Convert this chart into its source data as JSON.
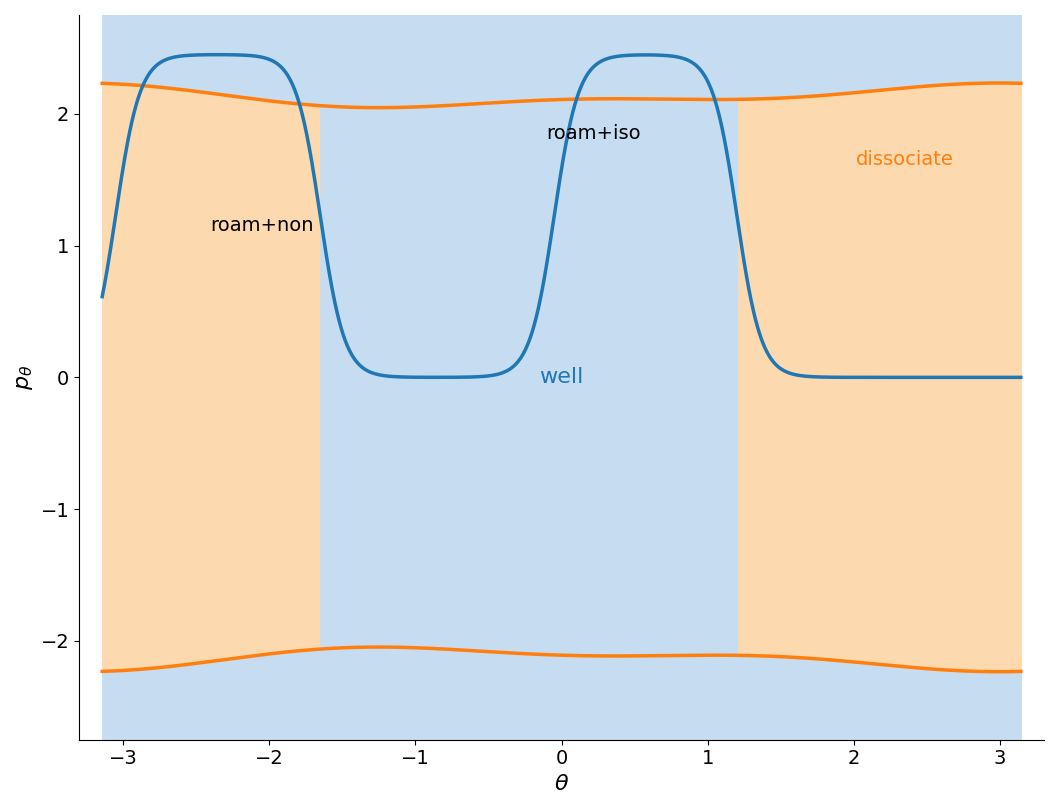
{
  "xlim": [
    -3.3,
    3.3
  ],
  "ylim": [
    -2.75,
    2.75
  ],
  "xlabel": "$\\theta$",
  "ylabel": "$p_{\\theta}$",
  "xlabel_fontsize": 16,
  "ylabel_fontsize": 16,
  "tick_fontsize": 14,
  "xticks": [
    -3,
    -2,
    -1,
    0,
    1,
    2,
    3
  ],
  "yticks": [
    -2,
    -1,
    0,
    1,
    2
  ],
  "blue_color": "#1f77b4",
  "orange_color": "#ff7f0e",
  "blue_fill": "#c6dcf0",
  "orange_fill": "#fdd9b0",
  "label_roam_non": "roam+non",
  "label_roam_iso": "roam+iso",
  "label_well": "well",
  "label_dissociate": "dissociate",
  "label_fontsize": 14,
  "label_well_fontsize": 16,
  "roam_non_x": -2.05,
  "roam_non_y": 1.15,
  "roam_iso_x": 0.22,
  "roam_iso_y": 1.85,
  "well_x": 0.0,
  "well_y": 0.0,
  "dissociate_x": 2.35,
  "dissociate_y": 1.65,
  "blue_amplitude": 2.45,
  "blue_sharpness": 3.5,
  "blue_freq": 1.0,
  "blue_phase": -0.45,
  "orange_base": 2.13,
  "orange_cos2_amp": 0.04,
  "orange_cos1_amp": 0.07,
  "orange_cos1_phase": 0.5
}
